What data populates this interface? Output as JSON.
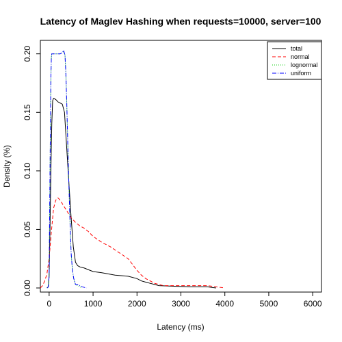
{
  "chart_data": {
    "type": "line",
    "title": "Latency of Maglev Hashing when requests=10000, server=100",
    "xlabel": "Latency (ms)",
    "ylabel": "Density (%)",
    "xlim": [
      -200,
      6200
    ],
    "ylim": [
      -0.0035,
      0.2115
    ],
    "xticks": [
      0,
      1000,
      2000,
      3000,
      4000,
      5000,
      6000
    ],
    "yticks": [
      0.0,
      0.05,
      0.1,
      0.15,
      0.2
    ],
    "xtick_labels": [
      "0",
      "1000",
      "2000",
      "3000",
      "4000",
      "5000",
      "6000"
    ],
    "ytick_labels": [
      "0.00",
      "0.05",
      "0.10",
      "0.15",
      "0.20"
    ],
    "grid": false,
    "legend_position": "top-right",
    "series": [
      {
        "name": "total",
        "color": "#000000",
        "dash": "solid",
        "x": [
          -50,
          -20,
          0,
          20,
          40,
          60,
          80,
          100,
          150,
          200,
          250,
          300,
          350,
          400,
          450,
          500,
          550,
          600,
          650,
          700,
          800,
          1000,
          1200,
          1500,
          1800,
          2000,
          2100,
          2200,
          2300,
          2400,
          2500,
          2800,
          3200,
          3600,
          3700,
          3800
        ],
        "y": [
          0.0,
          0.001,
          0.01,
          0.05,
          0.1,
          0.14,
          0.16,
          0.162,
          0.161,
          0.159,
          0.158,
          0.157,
          0.15,
          0.12,
          0.09,
          0.06,
          0.035,
          0.022,
          0.019,
          0.018,
          0.017,
          0.014,
          0.013,
          0.011,
          0.01,
          0.008,
          0.006,
          0.005,
          0.004,
          0.003,
          0.002,
          0.0015,
          0.001,
          0.001,
          0.0005,
          0.0
        ]
      },
      {
        "name": "normal",
        "color": "#ff0000",
        "dash": "5,3",
        "x": [
          -200,
          -150,
          -100,
          -50,
          0,
          50,
          100,
          150,
          200,
          250,
          300,
          400,
          500,
          600,
          700,
          800,
          900,
          1000,
          1200,
          1400,
          1600,
          1800,
          1900,
          2000,
          2100,
          2200,
          2300,
          2400,
          2500,
          2600,
          2800,
          3200,
          3600,
          3800,
          4000
        ],
        "y": [
          0.0,
          0.002,
          0.006,
          0.012,
          0.025,
          0.048,
          0.068,
          0.075,
          0.077,
          0.075,
          0.072,
          0.066,
          0.06,
          0.056,
          0.053,
          0.051,
          0.048,
          0.044,
          0.039,
          0.035,
          0.03,
          0.025,
          0.02,
          0.015,
          0.011,
          0.008,
          0.006,
          0.004,
          0.003,
          0.002,
          0.002,
          0.002,
          0.002,
          0.001,
          0.0
        ]
      },
      {
        "name": "lognormal",
        "color": "#00cc00",
        "dash": "1,2",
        "x": [
          -40,
          -20,
          0,
          20,
          40,
          50,
          60,
          80,
          100,
          150,
          200,
          250,
          300,
          330,
          360,
          380,
          400,
          420,
          440,
          460,
          480,
          500,
          530,
          560,
          600,
          650,
          700,
          750
        ],
        "y": [
          0.0,
          0.001,
          0.01,
          0.1,
          0.18,
          0.197,
          0.2,
          0.2,
          0.2,
          0.2,
          0.2,
          0.2,
          0.201,
          0.202,
          0.199,
          0.185,
          0.16,
          0.13,
          0.1,
          0.075,
          0.05,
          0.03,
          0.015,
          0.008,
          0.003,
          0.002,
          0.001,
          0.0
        ]
      },
      {
        "name": "uniform",
        "color": "#0000ff",
        "dash": "6,2,1,2",
        "x": [
          -40,
          -20,
          0,
          20,
          40,
          50,
          60,
          80,
          100,
          150,
          200,
          250,
          300,
          330,
          360,
          380,
          400,
          420,
          440,
          460,
          480,
          500,
          530,
          560,
          600,
          650,
          700,
          750,
          850
        ],
        "y": [
          0.0,
          0.001,
          0.01,
          0.1,
          0.18,
          0.197,
          0.2,
          0.2,
          0.2,
          0.2,
          0.2,
          0.2,
          0.201,
          0.203,
          0.199,
          0.185,
          0.16,
          0.13,
          0.1,
          0.075,
          0.05,
          0.03,
          0.015,
          0.008,
          0.003,
          0.003,
          0.002,
          0.001,
          0.0
        ]
      }
    ]
  }
}
